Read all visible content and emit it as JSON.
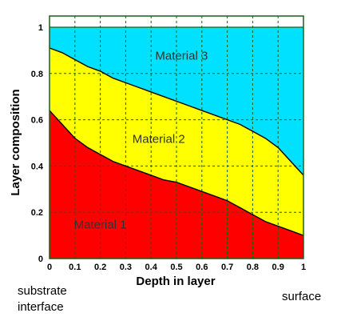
{
  "chart_data": {
    "type": "area",
    "stacked": true,
    "x": [
      0,
      0.05,
      0.1,
      0.15,
      0.2,
      0.25,
      0.3,
      0.35,
      0.4,
      0.45,
      0.5,
      0.55,
      0.6,
      0.65,
      0.7,
      0.75,
      0.8,
      0.85,
      0.9,
      0.95,
      1
    ],
    "boundary_1_2": [
      0.64,
      0.58,
      0.52,
      0.48,
      0.45,
      0.42,
      0.4,
      0.38,
      0.36,
      0.34,
      0.33,
      0.31,
      0.29,
      0.27,
      0.25,
      0.22,
      0.19,
      0.16,
      0.14,
      0.12,
      0.1
    ],
    "boundary_2_3": [
      0.91,
      0.89,
      0.86,
      0.83,
      0.81,
      0.78,
      0.76,
      0.74,
      0.72,
      0.7,
      0.68,
      0.66,
      0.64,
      0.62,
      0.6,
      0.58,
      0.55,
      0.52,
      0.48,
      0.42,
      0.36
    ],
    "series": [
      {
        "name": "Material 1",
        "color": "#ff0000"
      },
      {
        "name": "Material 2",
        "color": "#ffff00"
      },
      {
        "name": "Material 3",
        "color": "#00e0ff"
      }
    ],
    "xlabel": "Depth in layer",
    "ylabel": "Layer composition",
    "xlim": [
      0,
      1
    ],
    "ylim": [
      0,
      1
    ],
    "xticks": [
      "0",
      "0.1",
      "0.2",
      "0.3",
      "0.4",
      "0.5",
      "0.6",
      "0.7",
      "0.8",
      "0.9",
      "1"
    ],
    "yticks": [
      "0",
      "0.2",
      "0.4",
      "0.6",
      "0.8",
      "1"
    ],
    "grid": true,
    "x_left_annotation": [
      "substrate",
      "interface"
    ],
    "x_right_annotation": "surface"
  }
}
